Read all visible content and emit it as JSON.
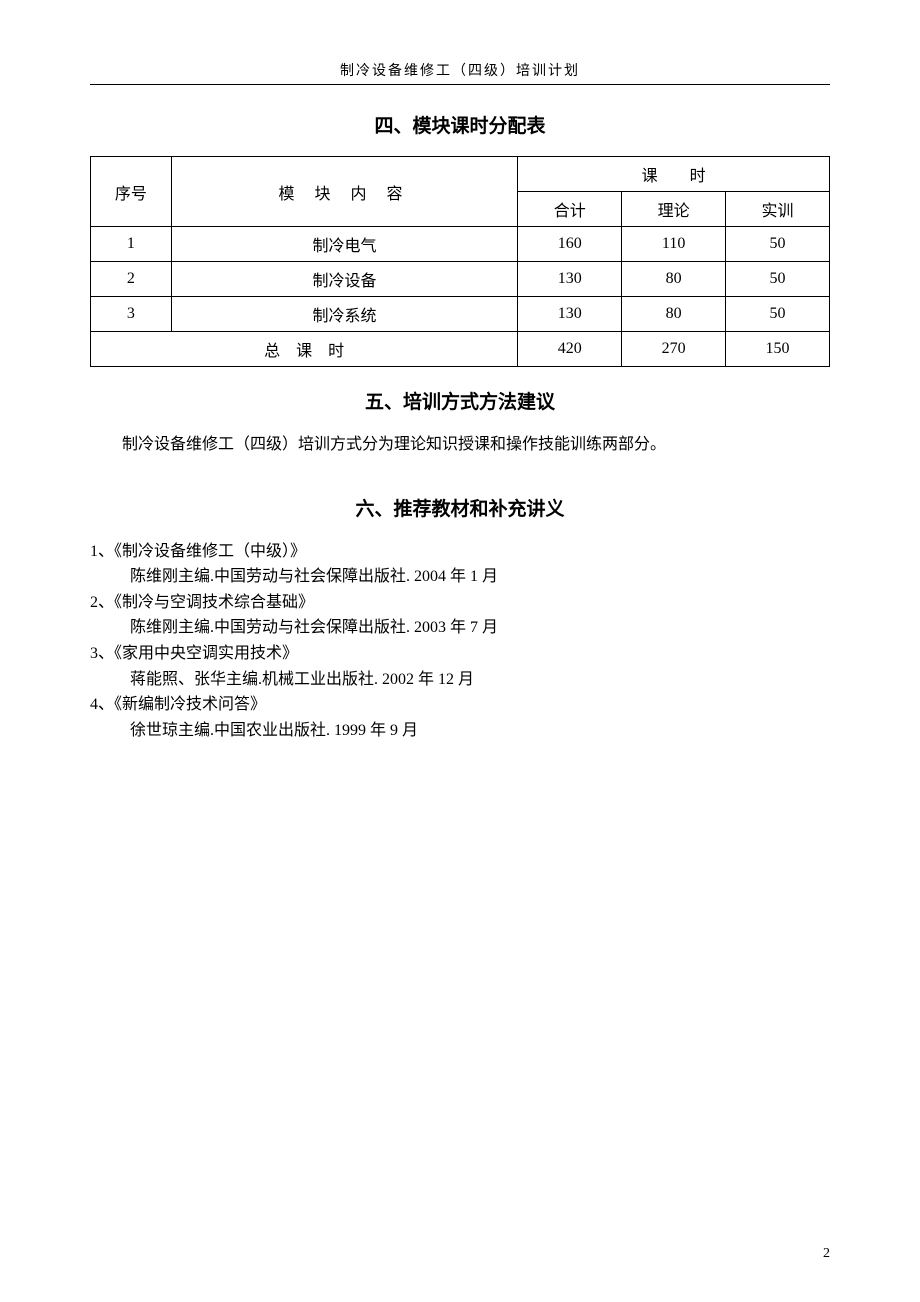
{
  "header": {
    "title": "制冷设备维修工（四级）培训计划"
  },
  "section4": {
    "title": "四、模块课时分配表",
    "table": {
      "headers": {
        "seq": "序号",
        "content": "模 块 内 容",
        "hours": "课　　时",
        "total": "合计",
        "theory": "理论",
        "practice": "实训"
      },
      "rows": [
        {
          "seq": "1",
          "content": "制冷电气",
          "total": "160",
          "theory": "110",
          "practice": "50"
        },
        {
          "seq": "2",
          "content": "制冷设备",
          "total": "130",
          "theory": "80",
          "practice": "50"
        },
        {
          "seq": "3",
          "content": "制冷系统",
          "total": "130",
          "theory": "80",
          "practice": "50"
        }
      ],
      "totalRow": {
        "label": "总　课　时",
        "total": "420",
        "theory": "270",
        "practice": "150"
      }
    }
  },
  "section5": {
    "title": "五、培训方式方法建议",
    "text": "制冷设备维修工（四级）培训方式分为理论知识授课和操作技能训练两部分。"
  },
  "section6": {
    "title": "六、推荐教材和补充讲义",
    "books": [
      {
        "num": "1、",
        "title": "《制冷设备维修工（中级）》",
        "detail": "陈维刚主编.中国劳动与社会保障出版社. 2004 年 1 月"
      },
      {
        "num": "2、",
        "title": "《制冷与空调技术综合基础》",
        "detail": "陈维刚主编.中国劳动与社会保障出版社. 2003 年 7 月"
      },
      {
        "num": "3、",
        "title": "《家用中央空调实用技术》",
        "detail": "蒋能照、张华主编.机械工业出版社. 2002 年 12 月"
      },
      {
        "num": "4、",
        "title": "《新编制冷技术问答》",
        "detail": "徐世琼主编.中国农业出版社. 1999 年 9 月"
      }
    ]
  },
  "pageNumber": "2"
}
